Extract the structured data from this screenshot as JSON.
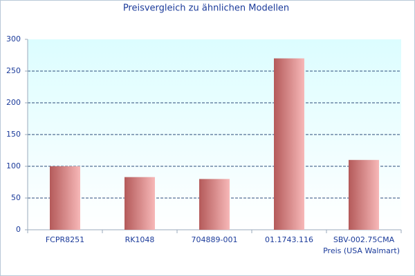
{
  "chart_data": {
    "type": "bar",
    "title": "Preisvergleich zu ähnlichen Modellen",
    "x_label": "Preis (USA Walmart)",
    "categories": [
      "FCPR8251",
      "RK1048",
      "704889-001",
      "01.1743.116",
      "SBV-002.75CMA"
    ],
    "values": [
      100,
      83,
      80,
      270,
      110
    ],
    "color": "#c76f6f",
    "ylim": [
      0,
      300
    ],
    "yticks": [
      0,
      50,
      100,
      150,
      200,
      250,
      300
    ],
    "grid": true
  }
}
